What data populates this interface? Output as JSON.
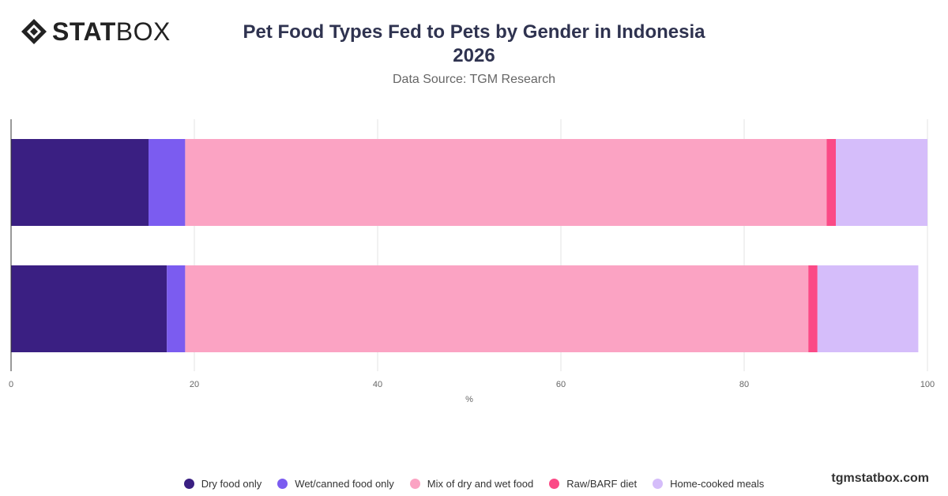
{
  "brand": {
    "logo_text_bold": "STAT",
    "logo_text_light": "BOX",
    "watermark": "tgmstatbox.com"
  },
  "header": {
    "title_line1": "Pet Food Types Fed to Pets by Gender in Indonesia",
    "title_line2": "2026",
    "subtitle": "Data Source: TGM Research"
  },
  "chart_data": {
    "type": "bar",
    "orientation": "horizontal",
    "stacked": true,
    "title": "Pet Food Types Fed to Pets by Gender in Indonesia 2026",
    "subtitle": "Data Source: TGM Research",
    "xlabel": "%",
    "ylabel": "",
    "xlim": [
      0,
      100
    ],
    "x_ticks": [
      0,
      20,
      40,
      60,
      80,
      100
    ],
    "categories": [
      "",
      ""
    ],
    "grid": true,
    "legend_position": "bottom",
    "series": [
      {
        "name": "Dry food only",
        "color": "#3a1f82",
        "values": [
          15,
          17
        ]
      },
      {
        "name": "Wet/canned food only",
        "color": "#7b5cf0",
        "values": [
          4,
          2
        ]
      },
      {
        "name": "Mix of dry and wet food",
        "color": "#fba3c3",
        "values": [
          70,
          68
        ]
      },
      {
        "name": "Raw/BARF diet",
        "color": "#fb4a86",
        "values": [
          1,
          1
        ]
      },
      {
        "name": "Home-cooked meals",
        "color": "#d5bdfa",
        "values": [
          10,
          11
        ]
      }
    ]
  }
}
